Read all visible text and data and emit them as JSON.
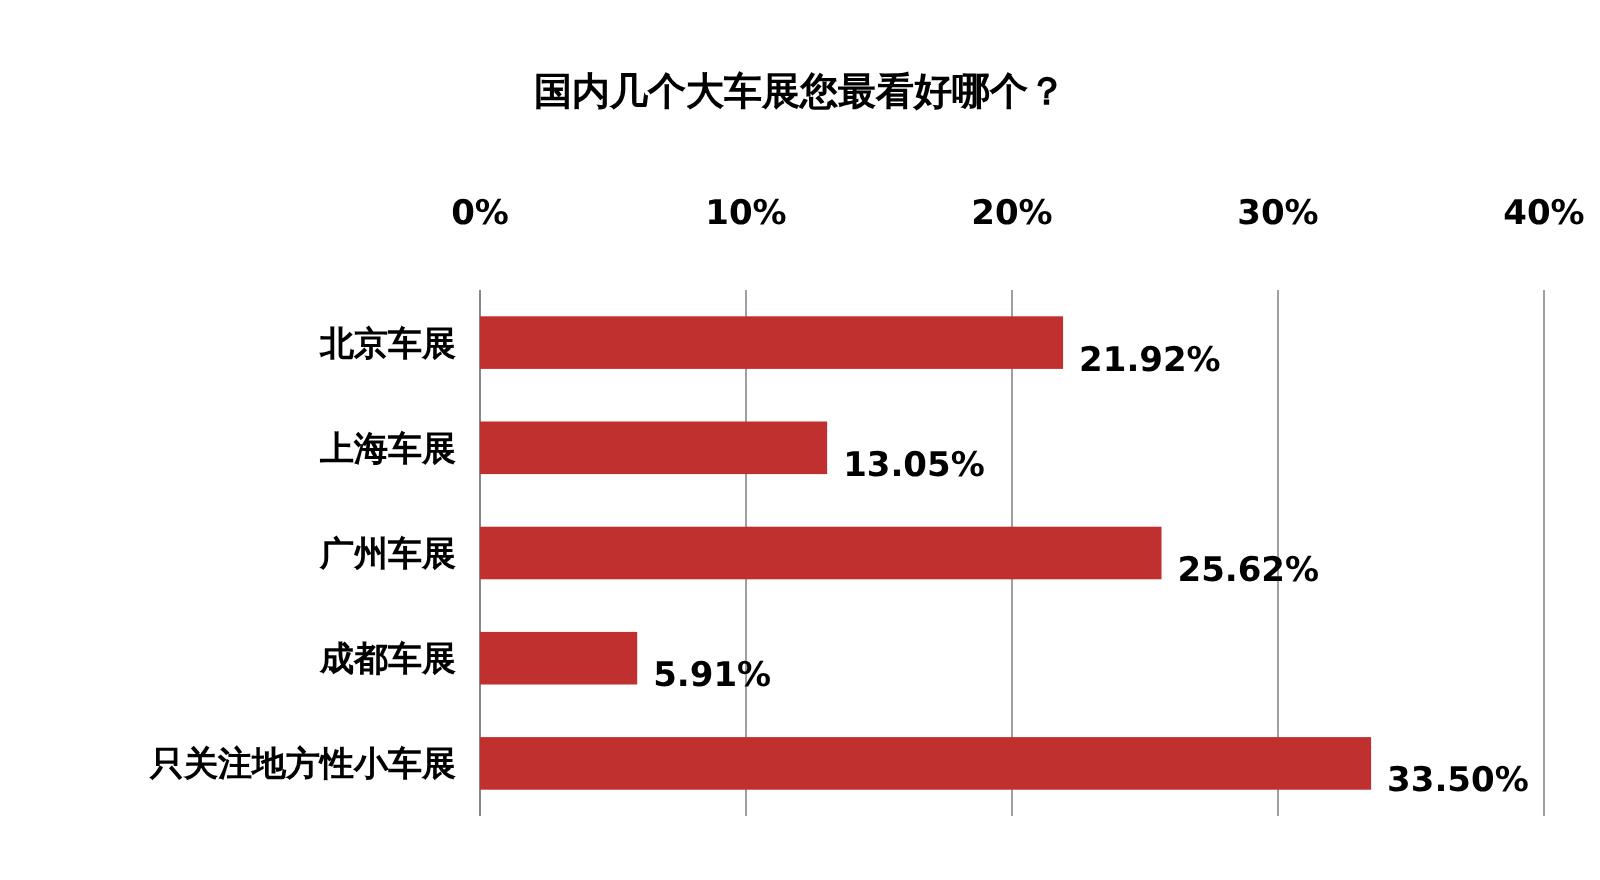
{
  "chart_data": {
    "type": "bar",
    "orientation": "horizontal",
    "title": "国内几个大车展您最看好哪个？",
    "categories": [
      "北京车展",
      "上海车展",
      "广州车展",
      "成都车展",
      "只关注地方性小车展"
    ],
    "values": [
      21.92,
      13.05,
      25.62,
      5.91,
      33.5
    ],
    "value_labels": [
      "21.92%",
      "13.05%",
      "25.62%",
      "5.91%",
      "33.50%"
    ],
    "color": "#c0302f",
    "xlim": [
      0,
      40
    ],
    "xticks": [
      {
        "value": 0,
        "label": "0%"
      },
      {
        "value": 10,
        "label": "10%"
      },
      {
        "value": 20,
        "label": "20%"
      },
      {
        "value": 30,
        "label": "30%"
      },
      {
        "value": 40,
        "label": "40%"
      }
    ],
    "grid": "x"
  }
}
